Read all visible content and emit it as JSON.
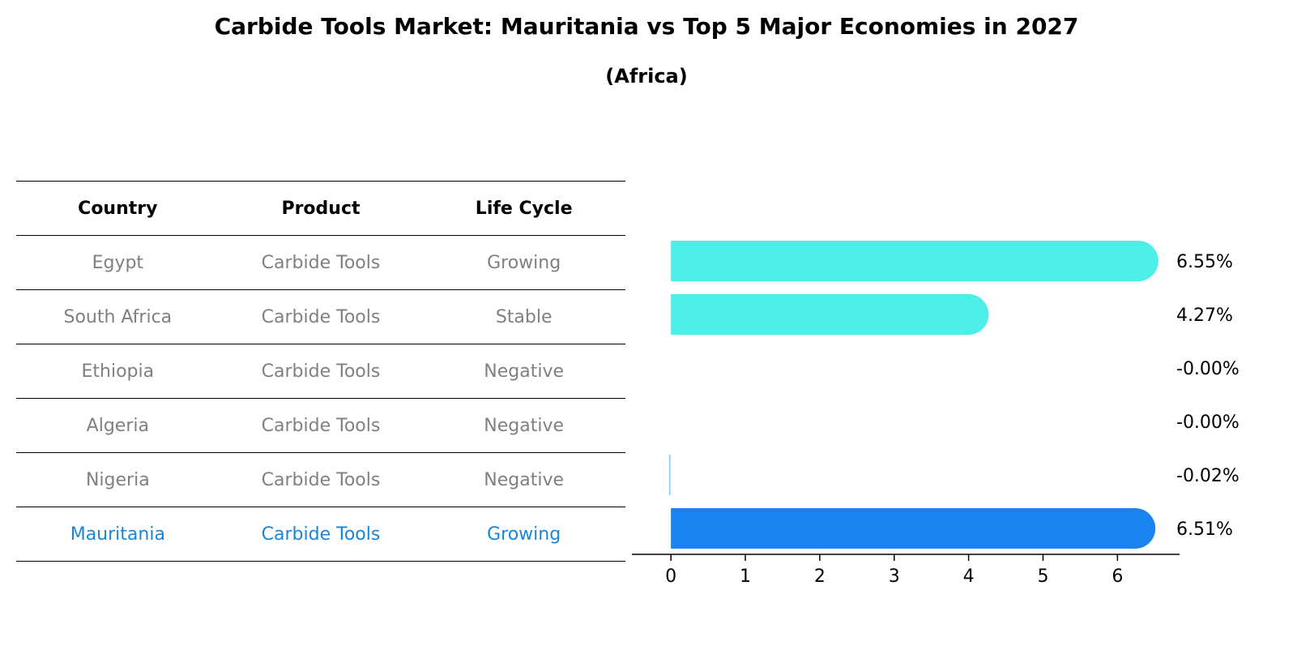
{
  "title": "Carbide Tools Market: Mauritania vs Top 5 Major Economies in 2027",
  "subtitle": "(Africa)",
  "table": {
    "headers": [
      "Country",
      "Product",
      "Life Cycle"
    ],
    "rows": [
      {
        "country": "Egypt",
        "product": "Carbide Tools",
        "life_cycle": "Growing"
      },
      {
        "country": "South Africa",
        "product": "Carbide Tools",
        "life_cycle": "Stable"
      },
      {
        "country": "Ethiopia",
        "product": "Carbide Tools",
        "life_cycle": "Negative"
      },
      {
        "country": "Algeria",
        "product": "Carbide Tools",
        "life_cycle": "Negative"
      },
      {
        "country": "Nigeria",
        "product": "Carbide Tools",
        "life_cycle": "Negative"
      },
      {
        "country": "Mauritania",
        "product": "Carbide Tools",
        "life_cycle": "Growing"
      }
    ]
  },
  "chart_data": {
    "type": "bar",
    "orientation": "horizontal",
    "categories": [
      "Egypt",
      "South Africa",
      "Ethiopia",
      "Algeria",
      "Nigeria",
      "Mauritania"
    ],
    "values": [
      6.55,
      4.27,
      -0.0,
      -0.0,
      -0.02,
      6.51
    ],
    "value_labels": [
      "6.55%",
      "4.27%",
      "-0.00%",
      "-0.00%",
      "-0.02%",
      "6.51%"
    ],
    "highlight": "Mauritania",
    "xticks": [
      0,
      1,
      2,
      3,
      4,
      5,
      6
    ],
    "xlim": [
      -0.35,
      6.9
    ],
    "colors": {
      "positive": "#4deee8",
      "negative": "#87cefa",
      "highlight": "#1a84f0"
    },
    "grid": false
  }
}
